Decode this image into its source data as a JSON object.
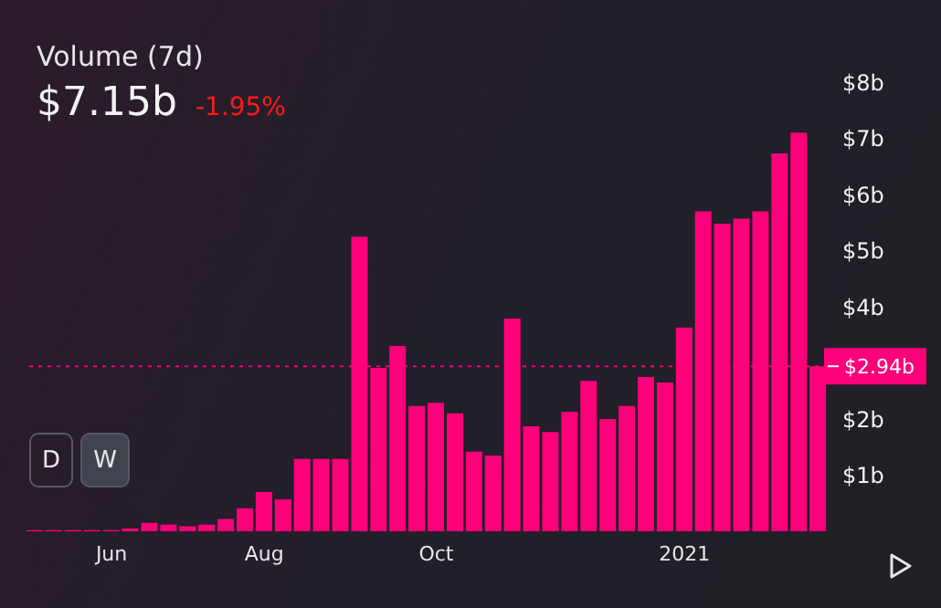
{
  "chart_data": {
    "type": "bar",
    "title": "Volume (7d)",
    "subtitle": "$7.15b",
    "annotations": [
      "-1.95%",
      "D",
      "W"
    ],
    "categories": [
      null,
      null,
      null,
      null,
      "Jun",
      null,
      null,
      null,
      null,
      null,
      null,
      null,
      "Aug",
      null,
      null,
      null,
      null,
      null,
      null,
      null,
      null,
      "Oct",
      null,
      null,
      null,
      null,
      null,
      null,
      null,
      null,
      null,
      null,
      null,
      null,
      "2021",
      null,
      null,
      null,
      null,
      null,
      null,
      null
    ],
    "values": [
      0.02,
      0.02,
      0.02,
      0.02,
      0.02,
      0.05,
      0.15,
      0.12,
      0.09,
      0.12,
      0.22,
      0.41,
      0.7,
      0.57,
      1.29,
      1.29,
      1.29,
      5.25,
      2.91,
      3.3,
      2.23,
      2.29,
      2.1,
      1.42,
      1.35,
      3.79,
      1.87,
      1.77,
      2.13,
      2.68,
      2.0,
      2.23,
      2.75,
      2.65,
      3.63,
      5.7,
      5.48,
      5.57,
      5.7,
      6.73,
      7.1,
      2.94
    ],
    "color": "#ff007a",
    "ylim": [
      0,
      8
    ],
    "yticks": [
      {
        "value": 1,
        "label": "$1b"
      },
      {
        "value": 2,
        "label": "$2b"
      },
      {
        "value": 4,
        "label": "$4b"
      },
      {
        "value": 5,
        "label": "$5b"
      },
      {
        "value": 6,
        "label": "$6b"
      },
      {
        "value": 7,
        "label": "$7b"
      },
      {
        "value": 8,
        "label": "$8b"
      }
    ],
    "ref_lines": [
      {
        "axis": "y",
        "value": 2.94,
        "label": "$2.94b",
        "color": "#ff007a",
        "line_style": "dotted"
      }
    ],
    "grid": false,
    "legend": false
  }
}
